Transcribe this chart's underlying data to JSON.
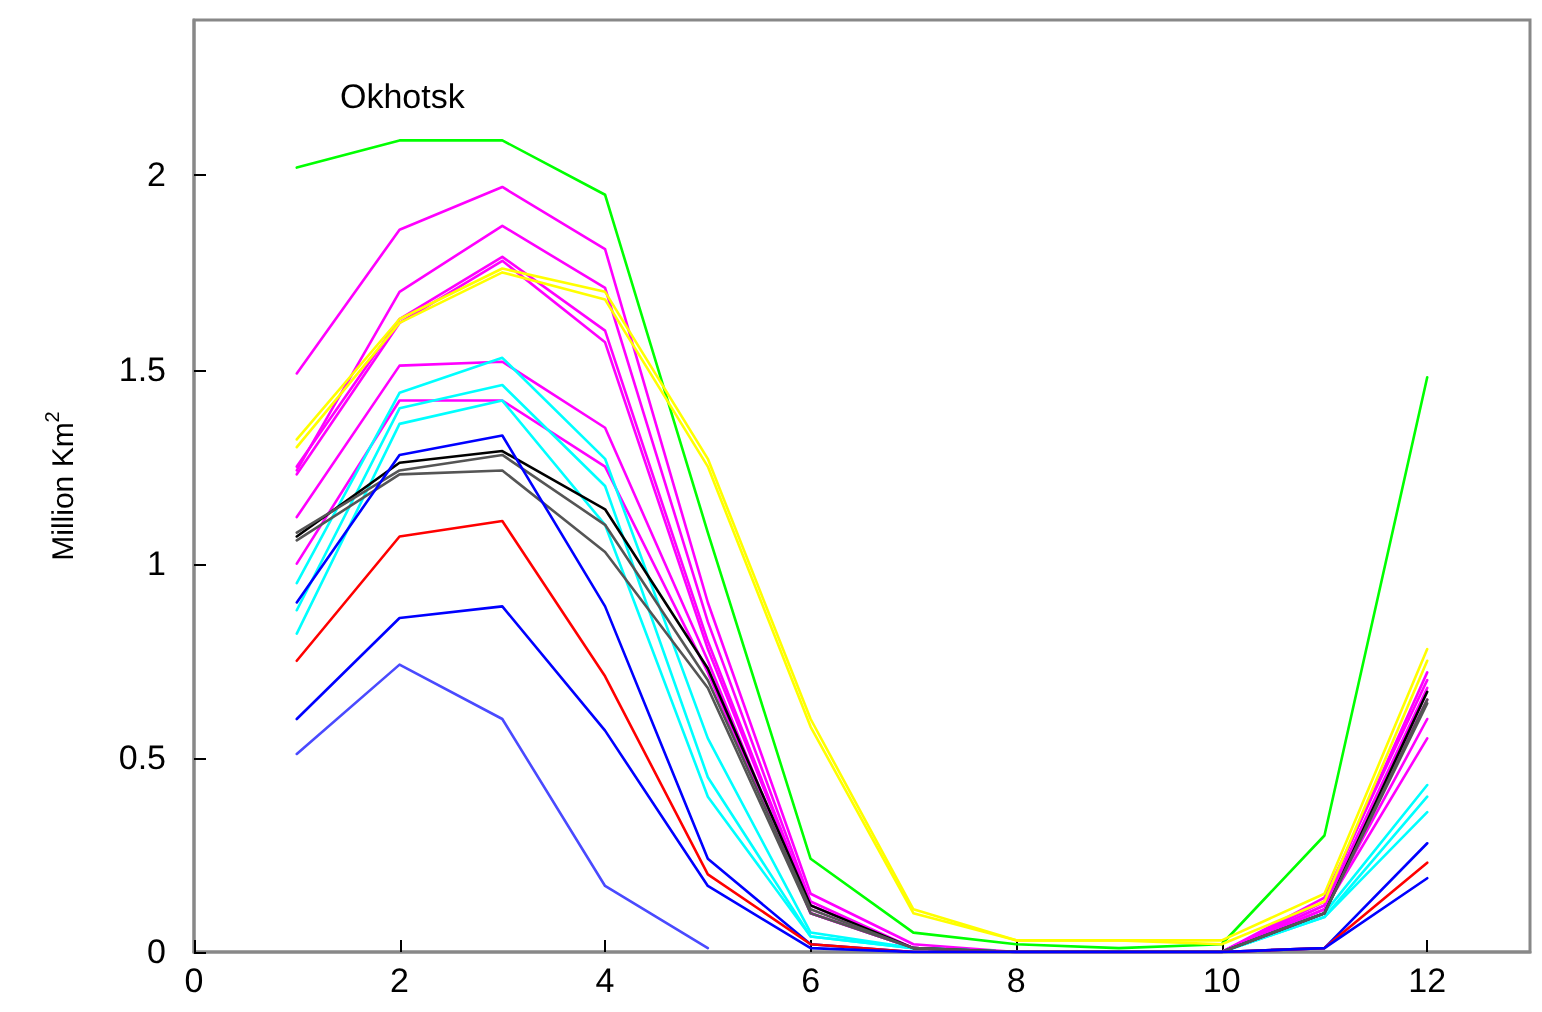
{
  "chart_data": {
    "type": "line",
    "title": "Okhotsk",
    "ylabel": "Million Km$^{2}$",
    "x": [
      1,
      2,
      3,
      4,
      5,
      6,
      7,
      8,
      9,
      10,
      11,
      12
    ],
    "xlim": [
      0,
      13
    ],
    "xticks": [
      0,
      2,
      4,
      6,
      8,
      10,
      12
    ],
    "ylim": [
      0,
      2.4
    ],
    "yticks": [
      0,
      0.5,
      1,
      1.5,
      2
    ],
    "grid": false,
    "marker": "none",
    "line_style": "solid",
    "series": [
      {
        "color": "#00ff00",
        "values": [
          2.02,
          2.09,
          2.09,
          1.95,
          1.08,
          0.24,
          0.05,
          0.02,
          0.01,
          0.02,
          0.3,
          1.48
        ]
      },
      {
        "color": "#ff00ff",
        "values": [
          1.49,
          1.86,
          1.97,
          1.81,
          0.9,
          0.15,
          0.02,
          0,
          0,
          0,
          0.14,
          0.7
        ]
      },
      {
        "color": "#ff00ff",
        "values": [
          1.24,
          1.7,
          1.87,
          1.71,
          0.85,
          0.13,
          0.01,
          0,
          0,
          0,
          0.13,
          0.72
        ]
      },
      {
        "color": "#ff00ff",
        "values": [
          1.25,
          1.63,
          1.79,
          1.6,
          0.8,
          0.12,
          0.01,
          0,
          0,
          0,
          0.12,
          0.68
        ]
      },
      {
        "color": "#ff00ff",
        "values": [
          1.23,
          1.62,
          1.78,
          1.57,
          0.78,
          0.12,
          0.01,
          0,
          0,
          0,
          0.12,
          0.65
        ]
      },
      {
        "color": "#ff00ff",
        "values": [
          1.12,
          1.51,
          1.52,
          1.35,
          0.75,
          0.1,
          0.01,
          0,
          0,
          0,
          0.11,
          0.55
        ]
      },
      {
        "color": "#ff00ff",
        "values": [
          1.0,
          1.42,
          1.42,
          1.25,
          0.72,
          0.1,
          0.01,
          0,
          0,
          0,
          0.11,
          0.6
        ]
      },
      {
        "color": "#ffff00",
        "values": [
          1.32,
          1.63,
          1.76,
          1.7,
          1.27,
          0.6,
          0.11,
          0.03,
          0.03,
          0.03,
          0.15,
          0.78
        ]
      },
      {
        "color": "#ffff00",
        "values": [
          1.3,
          1.62,
          1.75,
          1.68,
          1.25,
          0.58,
          0.1,
          0.03,
          0.03,
          0.02,
          0.13,
          0.75
        ]
      },
      {
        "color": "#00ffff",
        "values": [
          0.95,
          1.44,
          1.53,
          1.27,
          0.55,
          0.05,
          0.01,
          0,
          0,
          0,
          0.1,
          0.43
        ]
      },
      {
        "color": "#00ffff",
        "values": [
          0.88,
          1.4,
          1.46,
          1.2,
          0.45,
          0.04,
          0.01,
          0,
          0,
          0,
          0.09,
          0.4
        ]
      },
      {
        "color": "#00ffff",
        "values": [
          0.82,
          1.36,
          1.42,
          1.1,
          0.4,
          0.04,
          0.01,
          0,
          0,
          0,
          0.09,
          0.36
        ]
      },
      {
        "color": "#000000",
        "values": [
          1.07,
          1.26,
          1.29,
          1.14,
          0.73,
          0.12,
          0.01,
          0,
          0,
          0,
          0.1,
          0.67
        ]
      },
      {
        "color": "#555555",
        "values": [
          1.08,
          1.24,
          1.28,
          1.1,
          0.7,
          0.11,
          0.01,
          0,
          0,
          0,
          0.1,
          0.65
        ]
      },
      {
        "color": "#555555",
        "values": [
          1.06,
          1.23,
          1.24,
          1.03,
          0.68,
          0.1,
          0.01,
          0,
          0,
          0,
          0.1,
          0.64
        ]
      },
      {
        "color": "#0000ff",
        "values": [
          0.9,
          1.28,
          1.33,
          0.89,
          0.24,
          0.02,
          0,
          0,
          0,
          0,
          0.01,
          0.28
        ]
      },
      {
        "color": "#ff0000",
        "values": [
          0.75,
          1.07,
          1.11,
          0.71,
          0.2,
          0.02,
          0,
          0,
          0,
          0,
          0.01,
          0.23
        ]
      },
      {
        "color": "#0000ff",
        "values": [
          0.6,
          0.86,
          0.89,
          0.57,
          0.17,
          0.01,
          0,
          0,
          0,
          0,
          0.01,
          0.19
        ]
      },
      {
        "color": "#4a4aff",
        "values": [
          0.51,
          0.74,
          0.6,
          0.17,
          0.01,
          null,
          null,
          null,
          null,
          null,
          null,
          null
        ]
      }
    ]
  }
}
